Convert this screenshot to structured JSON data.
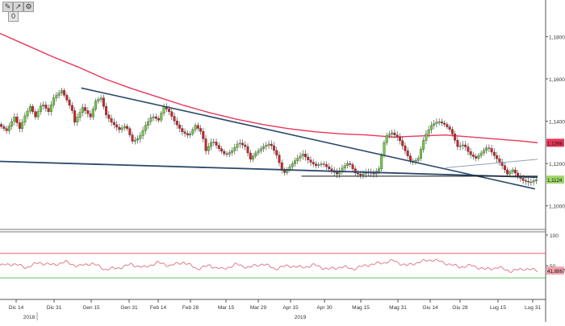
{
  "toolbar": {
    "buttons": [
      "✎",
      "↗",
      "⚙"
    ],
    "zero_label": "0"
  },
  "colors": {
    "up": "#6fcf3a",
    "down": "#d81f26",
    "ma": "#e8375a",
    "trend": "#2c4a6b",
    "support": "#111111",
    "channel": "#8fa3b8",
    "rsi": "#e0707a",
    "rsi_upper": "#e05060",
    "rsi_lower": "#40c040",
    "price_tag": "#9fd86b",
    "ma_tag": "#e8375a"
  },
  "chart_data": {
    "type": "candlestick",
    "price_axis": {
      "range": [
        1.09,
        1.195
      ],
      "ticks": [
        "1,1800",
        "1,1600",
        "1,1400",
        "1,1200",
        "1,1000"
      ],
      "tick_values": [
        1.18,
        1.16,
        1.14,
        1.12,
        1.1
      ]
    },
    "rsi_axis": {
      "range": [
        0,
        100
      ],
      "ticks": [
        "100",
        "50"
      ],
      "tick_values": [
        100,
        50
      ],
      "levels": [
        70,
        30
      ]
    },
    "x_ticks": [
      "Dic 14",
      "Dic 31",
      "Gen 15",
      "Gen 31",
      "Feb 14",
      "Feb 28",
      "Mar 15",
      "Mar 29",
      "Apr 15",
      "Apr 30",
      "Mag 15",
      "Mag 31",
      "Giu 14",
      "Giu 28",
      "Lug 15",
      "Lug 31"
    ],
    "x_years": [
      "2018",
      "2019"
    ],
    "last_price_label": "1,1124",
    "ma_label": "1,1298",
    "rsi_label": "41,8867",
    "price_path": [
      [
        0,
        1.1385
      ],
      [
        6,
        1.1355
      ],
      [
        12,
        1.142
      ],
      [
        16,
        1.1365
      ],
      [
        20,
        1.1425
      ],
      [
        24,
        1.147
      ],
      [
        28,
        1.142
      ],
      [
        33,
        1.1485
      ],
      [
        38,
        1.1445
      ],
      [
        42,
        1.151
      ],
      [
        48,
        1.1545
      ],
      [
        52,
        1.15
      ],
      [
        56,
        1.145
      ],
      [
        58,
        1.1395
      ],
      [
        64,
        1.1465
      ],
      [
        70,
        1.142
      ],
      [
        74,
        1.1495
      ],
      [
        78,
        1.151
      ],
      [
        82,
        1.143
      ],
      [
        86,
        1.1395
      ],
      [
        92,
        1.136
      ],
      [
        97,
        1.138
      ],
      [
        102,
        1.1305
      ],
      [
        107,
        1.132
      ],
      [
        112,
        1.138
      ],
      [
        117,
        1.1425
      ],
      [
        122,
        1.1405
      ],
      [
        126,
        1.147
      ],
      [
        130,
        1.1445
      ],
      [
        135,
        1.139
      ],
      [
        140,
        1.135
      ],
      [
        145,
        1.133
      ],
      [
        150,
        1.138
      ],
      [
        155,
        1.1345
      ],
      [
        158,
        1.126
      ],
      [
        163,
        1.131
      ],
      [
        168,
        1.127
      ],
      [
        173,
        1.124
      ],
      [
        178,
        1.126
      ],
      [
        183,
        1.13
      ],
      [
        188,
        1.128
      ],
      [
        192,
        1.122
      ],
      [
        196,
        1.125
      ],
      [
        202,
        1.128
      ],
      [
        207,
        1.1295
      ],
      [
        212,
        1.124
      ],
      [
        217,
        1.115
      ],
      [
        222,
        1.1185
      ],
      [
        227,
        1.122
      ],
      [
        232,
        1.1245
      ],
      [
        237,
        1.121
      ],
      [
        242,
        1.119
      ],
      [
        247,
        1.12
      ],
      [
        252,
        1.1175
      ],
      [
        258,
        1.115
      ],
      [
        263,
        1.1185
      ],
      [
        267,
        1.1205
      ],
      [
        272,
        1.1155
      ],
      [
        276,
        1.1145
      ],
      [
        281,
        1.116
      ],
      [
        286,
        1.115
      ],
      [
        290,
        1.1175
      ],
      [
        295,
        1.133
      ],
      [
        300,
        1.1345
      ],
      [
        305,
        1.132
      ],
      [
        310,
        1.126
      ],
      [
        315,
        1.12
      ],
      [
        320,
        1.1225
      ],
      [
        325,
        1.133
      ],
      [
        330,
        1.138
      ],
      [
        335,
        1.14
      ],
      [
        340,
        1.1385
      ],
      [
        345,
        1.1355
      ],
      [
        350,
        1.128
      ],
      [
        355,
        1.129
      ],
      [
        359,
        1.1245
      ],
      [
        364,
        1.1225
      ],
      [
        368,
        1.125
      ],
      [
        373,
        1.128
      ],
      [
        377,
        1.1245
      ],
      [
        383,
        1.12
      ],
      [
        388,
        1.115
      ],
      [
        392,
        1.117
      ],
      [
        396,
        1.114
      ],
      [
        400,
        1.112
      ],
      [
        405,
        1.111
      ],
      [
        410,
        1.1124
      ]
    ],
    "rsi_path": [
      [
        0,
        50
      ],
      [
        10,
        53
      ],
      [
        20,
        47
      ],
      [
        30,
        55
      ],
      [
        40,
        51
      ],
      [
        50,
        56
      ],
      [
        60,
        49
      ],
      [
        70,
        54
      ],
      [
        80,
        44
      ],
      [
        90,
        46
      ],
      [
        100,
        52
      ],
      [
        110,
        47
      ],
      [
        120,
        55
      ],
      [
        130,
        50
      ],
      [
        140,
        56
      ],
      [
        150,
        45
      ],
      [
        160,
        50
      ],
      [
        170,
        44
      ],
      [
        180,
        52
      ],
      [
        190,
        47
      ],
      [
        200,
        53
      ],
      [
        210,
        45
      ],
      [
        220,
        50
      ],
      [
        230,
        47
      ],
      [
        240,
        51
      ],
      [
        250,
        44
      ],
      [
        260,
        48
      ],
      [
        270,
        45
      ],
      [
        280,
        51
      ],
      [
        290,
        54
      ],
      [
        300,
        58
      ],
      [
        310,
        50
      ],
      [
        320,
        56
      ],
      [
        330,
        60
      ],
      [
        340,
        54
      ],
      [
        350,
        48
      ],
      [
        360,
        50
      ],
      [
        370,
        44
      ],
      [
        380,
        47
      ],
      [
        390,
        41
      ],
      [
        400,
        45
      ],
      [
        410,
        41.9
      ]
    ],
    "moving_average": [
      [
        0,
        1.1815
      ],
      [
        20,
        1.176
      ],
      [
        40,
        1.1705
      ],
      [
        60,
        1.1655
      ],
      [
        80,
        1.16
      ],
      [
        100,
        1.1555
      ],
      [
        120,
        1.1515
      ],
      [
        140,
        1.1475
      ],
      [
        160,
        1.144
      ],
      [
        180,
        1.141
      ],
      [
        200,
        1.1385
      ],
      [
        220,
        1.1365
      ],
      [
        240,
        1.135
      ],
      [
        260,
        1.134
      ],
      [
        280,
        1.1335
      ],
      [
        300,
        1.1325
      ],
      [
        320,
        1.133
      ],
      [
        340,
        1.1335
      ],
      [
        360,
        1.1325
      ],
      [
        380,
        1.1315
      ],
      [
        400,
        1.1305
      ],
      [
        410,
        1.1298
      ]
    ],
    "trendline_upper": [
      [
        62,
        1.1557
      ],
      [
        408,
        1.108
      ]
    ],
    "trendline_lower": [
      [
        0,
        1.121
      ],
      [
        410,
        1.1135
      ]
    ],
    "support_line": [
      [
        230,
        1.114
      ],
      [
        410,
        1.114
      ]
    ],
    "channel_line": [
      [
        340,
        1.118
      ],
      [
        410,
        1.122
      ]
    ]
  }
}
